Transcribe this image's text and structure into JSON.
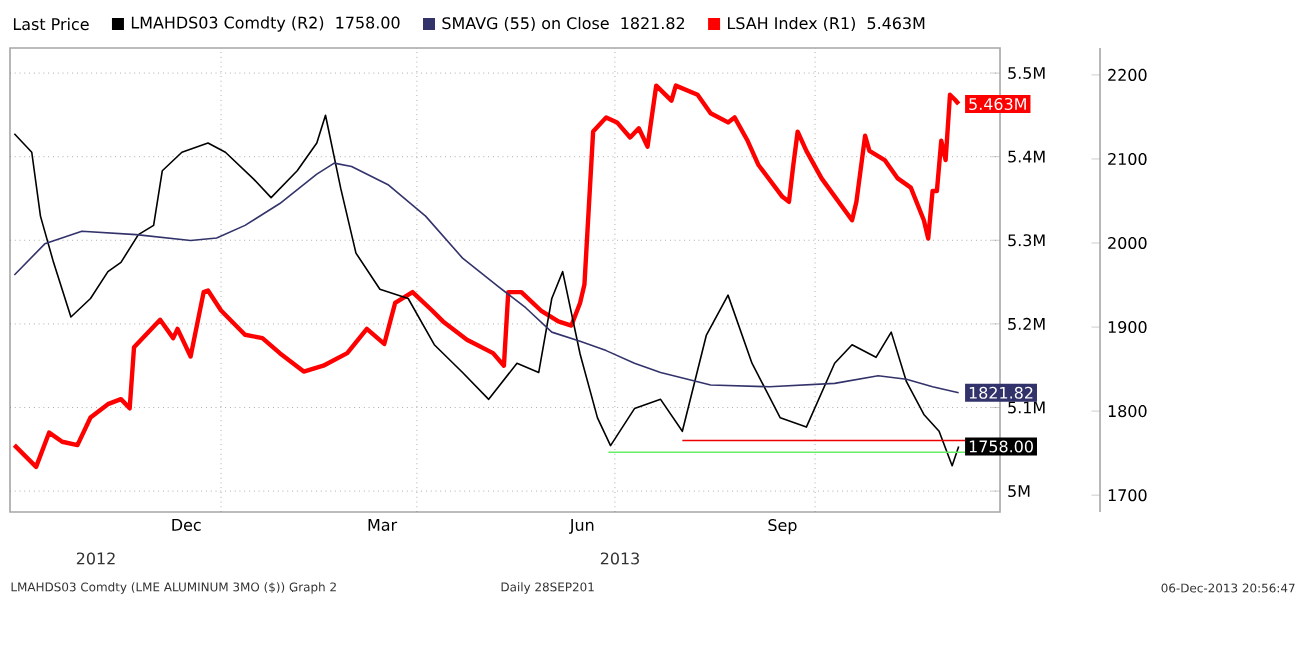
{
  "chart_data": {
    "type": "line",
    "legend_title": "Last Price",
    "legend": "top",
    "grid": true,
    "xlim": [
      "2012-09-26",
      "2013-12-25"
    ],
    "xticks": [
      {
        "value": "2012-12-16",
        "label": "Dec"
      },
      {
        "value": "2013-03-16",
        "label": "Mar"
      },
      {
        "value": "2013-06-16",
        "label": "Jun"
      },
      {
        "value": "2013-09-16",
        "label": "Sep"
      },
      {
        "value": "2013-01-01",
        "label": null
      },
      {
        "value": "2013-04-01",
        "label": null
      },
      {
        "value": "2013-07-01",
        "label": null
      },
      {
        "value": "2013-10-01",
        "label": null
      }
    ],
    "ylim": [
      4.975,
      5.53
    ],
    "yticks": [
      {
        "value": 5,
        "label": "5M"
      },
      {
        "value": 5.1,
        "label": "5.1M"
      },
      {
        "value": 5.2,
        "label": "5.2M"
      },
      {
        "value": 5.3,
        "label": "5.3M"
      },
      {
        "value": 5.4,
        "label": "5.4M"
      },
      {
        "value": 5.5,
        "label": "5.5M"
      }
    ],
    "y2lim": [
      1680,
      2232
    ],
    "y2ticks": [
      1700,
      1800,
      1900,
      2000,
      2100,
      2200
    ],
    "annotations": [
      "2012",
      "2013",
      "LMAHDS03 Comdty (LME ALUMINUM 3MO ($)) Graph 2",
      "Daily 28SEP201",
      "06-Dec-2013 20:56:47"
    ],
    "series": [
      {
        "name": "LMAHDS03 Comdty (R2)",
        "color": "#000000",
        "axis": "y2",
        "x": [
          "2012-09-28",
          "2012-10-06",
          "2012-10-10",
          "2012-10-16",
          "2012-10-24",
          "2012-11-02",
          "2012-11-10",
          "2012-11-16",
          "2012-11-24",
          "2012-12-01",
          "2012-12-05",
          "2012-12-14",
          "2012-12-26",
          "2013-01-03",
          "2013-01-16",
          "2013-01-24",
          "2013-02-05",
          "2013-02-14",
          "2013-02-18",
          "2013-02-25",
          "2013-03-04",
          "2013-03-15",
          "2013-03-28",
          "2013-04-09",
          "2013-04-22",
          "2013-05-04",
          "2013-05-17",
          "2013-05-27",
          "2013-06-02",
          "2013-06-07",
          "2013-06-15",
          "2013-06-23",
          "2013-06-29",
          "2013-07-10",
          "2013-07-22",
          "2013-08-01",
          "2013-08-12",
          "2013-08-22",
          "2013-09-02",
          "2013-09-15",
          "2013-09-27",
          "2013-10-10",
          "2013-10-18",
          "2013-10-29",
          "2013-11-05",
          "2013-11-12",
          "2013-11-20",
          "2013-11-27",
          "2013-12-03",
          "2013-12-06"
        ],
        "values": [
          2130,
          2108,
          2032,
          1977,
          1912,
          1934,
          1966,
          1977,
          2010,
          2021,
          2086,
          2108,
          2119,
          2108,
          2076,
          2054,
          2086,
          2119,
          2152,
          2065,
          1988,
          1945,
          1934,
          1879,
          1846,
          1814,
          1857,
          1846,
          1934,
          1966,
          1868,
          1792,
          1759,
          1803,
          1814,
          1776,
          1890,
          1938,
          1857,
          1792,
          1781,
          1857,
          1879,
          1864,
          1894,
          1835,
          1796,
          1776,
          1735,
          1758
        ],
        "value_labels": [
          null,
          null,
          null,
          null,
          null,
          null,
          null,
          null,
          null,
          null,
          null,
          null,
          null,
          null,
          null,
          null,
          null,
          null,
          null,
          null,
          null,
          null,
          null,
          null,
          null,
          null,
          null,
          null,
          null,
          null,
          null,
          null,
          null,
          null,
          null,
          null,
          null,
          null,
          null,
          null,
          null,
          null,
          null,
          null,
          null,
          null,
          null,
          null,
          null,
          "1758.00"
        ]
      },
      {
        "name": "SMAVG (55) on Close",
        "color": "#33336b",
        "axis": "y2",
        "x": [
          "2012-09-28",
          "2012-10-12",
          "2012-10-29",
          "2012-11-23",
          "2012-12-18",
          "2012-12-30",
          "2013-01-12",
          "2013-01-28",
          "2013-02-14",
          "2013-02-22",
          "2013-03-02",
          "2013-03-19",
          "2013-04-05",
          "2013-04-22",
          "2013-05-08",
          "2013-05-21",
          "2013-06-02",
          "2013-06-15",
          "2013-06-27",
          "2013-07-10",
          "2013-07-22",
          "2013-08-14",
          "2013-09-10",
          "2013-10-10",
          "2013-10-30",
          "2013-11-12",
          "2013-11-24",
          "2013-12-06"
        ],
        "values": [
          1962,
          1999,
          2014,
          2010,
          2003,
          2006,
          2021,
          2047,
          2082,
          2095,
          2091,
          2069,
          2032,
          1982,
          1949,
          1923,
          1894,
          1883,
          1872,
          1857,
          1846,
          1831,
          1829,
          1833,
          1842,
          1838,
          1829,
          1821.82
        ],
        "value_labels": [
          null,
          null,
          null,
          null,
          null,
          null,
          null,
          null,
          null,
          null,
          null,
          null,
          null,
          null,
          null,
          null,
          null,
          null,
          null,
          null,
          null,
          null,
          null,
          null,
          null,
          null,
          null,
          "1821.82"
        ]
      },
      {
        "name": "LSAH Index (R1)",
        "color": "#ff0000",
        "axis": "y",
        "x": [
          "2012-09-28",
          "2012-10-08",
          "2012-10-14",
          "2012-10-20",
          "2012-10-27",
          "2012-11-02",
          "2012-11-10",
          "2012-11-16",
          "2012-11-20",
          "2012-11-22",
          "2012-12-04",
          "2012-12-10",
          "2012-12-12",
          "2012-12-18",
          "2012-12-24",
          "2012-12-26",
          "2013-01-01",
          "2013-01-12",
          "2013-01-20",
          "2013-01-28",
          "2013-02-08",
          "2013-02-17",
          "2013-02-28",
          "2013-03-09",
          "2013-03-17",
          "2013-03-22",
          "2013-03-30",
          "2013-04-08",
          "2013-04-13",
          "2013-04-24",
          "2013-05-06",
          "2013-05-11",
          "2013-05-13",
          "2013-05-19",
          "2013-05-28",
          "2013-06-05",
          "2013-06-11",
          "2013-06-15",
          "2013-06-17",
          "2013-06-21",
          "2013-06-27",
          "2013-07-02",
          "2013-07-08",
          "2013-07-12",
          "2013-07-16",
          "2013-07-20",
          "2013-07-27",
          "2013-07-29",
          "2013-08-08",
          "2013-08-14",
          "2013-08-22",
          "2013-08-25",
          "2013-08-31",
          "2013-09-05",
          "2013-09-16",
          "2013-09-19",
          "2013-09-21",
          "2013-09-23",
          "2013-09-27",
          "2013-10-04",
          "2013-10-18",
          "2013-10-20",
          "2013-10-24",
          "2013-10-26",
          "2013-11-02",
          "2013-11-08",
          "2013-11-14",
          "2013-11-20",
          "2013-11-22",
          "2013-11-24",
          "2013-11-26",
          "2013-11-28",
          "2013-11-30",
          "2013-12-02",
          "2013-12-04",
          "2013-12-06"
        ],
        "values": [
          5.055,
          5.029,
          5.07,
          5.059,
          5.055,
          5.088,
          5.104,
          5.11,
          5.099,
          5.172,
          5.205,
          5.183,
          5.194,
          5.161,
          5.238,
          5.24,
          5.216,
          5.187,
          5.183,
          5.165,
          5.143,
          5.15,
          5.165,
          5.194,
          5.176,
          5.225,
          5.238,
          5.216,
          5.203,
          5.181,
          5.165,
          5.15,
          5.238,
          5.238,
          5.216,
          5.203,
          5.198,
          5.225,
          5.247,
          5.43,
          5.447,
          5.441,
          5.423,
          5.434,
          5.412,
          5.485,
          5.467,
          5.485,
          5.474,
          5.452,
          5.441,
          5.447,
          5.419,
          5.39,
          5.352,
          5.346,
          5.39,
          5.43,
          5.407,
          5.374,
          5.324,
          5.346,
          5.425,
          5.407,
          5.396,
          5.374,
          5.363,
          5.324,
          5.302,
          5.359,
          5.359,
          5.419,
          5.396,
          5.474,
          5.469,
          5.463
        ],
        "value_labels": [
          null,
          null,
          null,
          null,
          null,
          null,
          null,
          null,
          null,
          null,
          null,
          null,
          null,
          null,
          null,
          null,
          null,
          null,
          null,
          null,
          null,
          null,
          null,
          null,
          null,
          null,
          null,
          null,
          null,
          null,
          null,
          null,
          null,
          null,
          null,
          null,
          null,
          null,
          null,
          null,
          null,
          null,
          null,
          null,
          null,
          null,
          null,
          null,
          null,
          null,
          null,
          null,
          null,
          null,
          null,
          null,
          null,
          null,
          null,
          null,
          null,
          null,
          null,
          null,
          null,
          null,
          null,
          null,
          null,
          null,
          null,
          null,
          null,
          null,
          null,
          "5.463M"
        ]
      },
      {
        "type": "line",
        "color": "#ee0000",
        "axis": "y2",
        "x": [
          "2013-08-01",
          "2013-12-25"
        ],
        "values": [
          1765,
          1765
        ]
      },
      {
        "type": "line",
        "color": "#66ee66",
        "axis": "y2",
        "x": [
          "2013-06-28",
          "2013-12-25"
        ],
        "values": [
          1751,
          1751
        ]
      }
    ]
  }
}
